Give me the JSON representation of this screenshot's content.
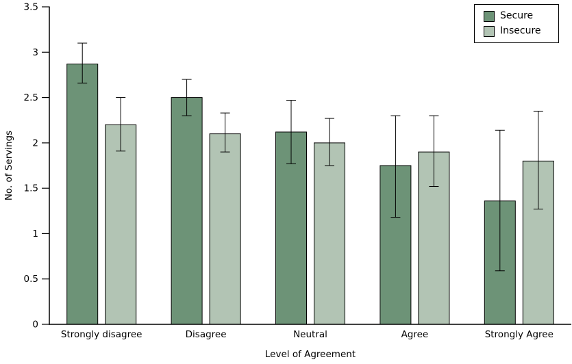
{
  "chart_data": {
    "type": "bar",
    "title": "",
    "xlabel": "Level of Agreement",
    "ylabel": "No. of Servings",
    "categories": [
      "Strongly disagree",
      "Disagree",
      "Neutral",
      "Agree",
      "Strongly Agree"
    ],
    "series": [
      {
        "name": "Secure",
        "color": "#6D9377",
        "values": [
          2.87,
          2.5,
          2.12,
          1.75,
          1.36
        ],
        "ci_low": [
          2.66,
          2.3,
          1.77,
          1.18,
          0.59
        ],
        "ci_high": [
          3.1,
          2.7,
          2.47,
          2.3,
          2.14
        ]
      },
      {
        "name": "Insecure",
        "color": "#B2C4B4",
        "values": [
          2.2,
          2.1,
          2.0,
          1.9,
          1.8
        ],
        "ci_low": [
          1.91,
          1.9,
          1.75,
          1.52,
          1.27
        ],
        "ci_high": [
          2.5,
          2.33,
          2.27,
          2.3,
          2.35
        ]
      }
    ],
    "ylim": [
      0,
      3.5
    ],
    "yticks": [
      0,
      0.5,
      1,
      1.5,
      2,
      2.5,
      3,
      3.5
    ],
    "ytick_labels": [
      "0",
      "0.5",
      "1",
      "1.5",
      "2",
      "2.5",
      "3",
      "3.5"
    ],
    "grid": false,
    "error_bars": true,
    "legend_position": "top-right",
    "bar_border_color": "#000000",
    "axis_color": "#000000",
    "background_color": "#FFFFFF"
  }
}
